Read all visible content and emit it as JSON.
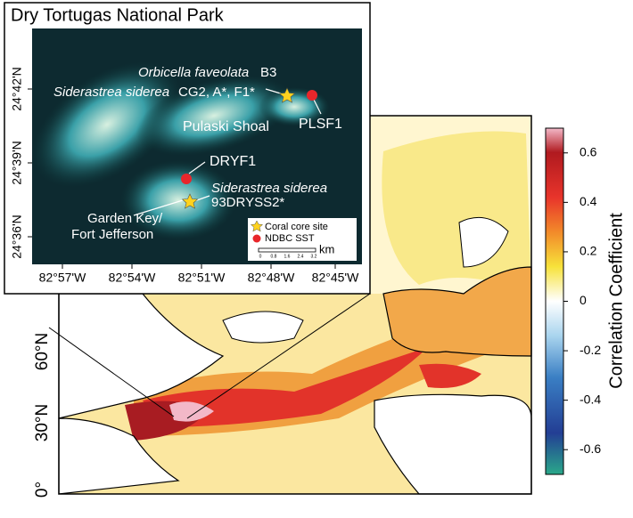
{
  "inset": {
    "title": "Dry Tortugas National Park",
    "lat_labels": [
      "24°42'N",
      "24°39'N",
      "24°36'N"
    ],
    "lon_labels": [
      "82°57'W",
      "82°54'W",
      "82°51'W",
      "82°48'W",
      "82°45'W"
    ],
    "annotations": {
      "orbicella_species": "Orbicella faveolata",
      "orbicella_core": "B3",
      "siderea_species_1": "Siderastrea siderea",
      "siderea_cores_1": "CG2, A*, F1*",
      "pulaski": "Pulaski Shoal",
      "plsf1": "PLSF1",
      "dryf1": "DRYF1",
      "siderea_species_2": "Siderastrea siderea",
      "siderea_core_2": "93DRYSS2*",
      "garden_key_1": "Garden Key/",
      "garden_key_2": "Fort Jefferson"
    },
    "legend": [
      "Coral core site",
      "NDBC SST"
    ],
    "scale": {
      "unit": "km",
      "ticks": [
        "0",
        "0.8",
        "1.6",
        "2.4",
        "3.2"
      ]
    }
  },
  "map": {
    "lat_labels": [
      "60°N",
      "30°N",
      "0°"
    ]
  },
  "colorbar": {
    "label": "Correlation Coefficient",
    "lim": [
      -0.7,
      0.7
    ],
    "ticks": [
      0.6,
      0.4,
      0.2,
      0,
      -0.2,
      -0.4,
      -0.6
    ]
  }
}
